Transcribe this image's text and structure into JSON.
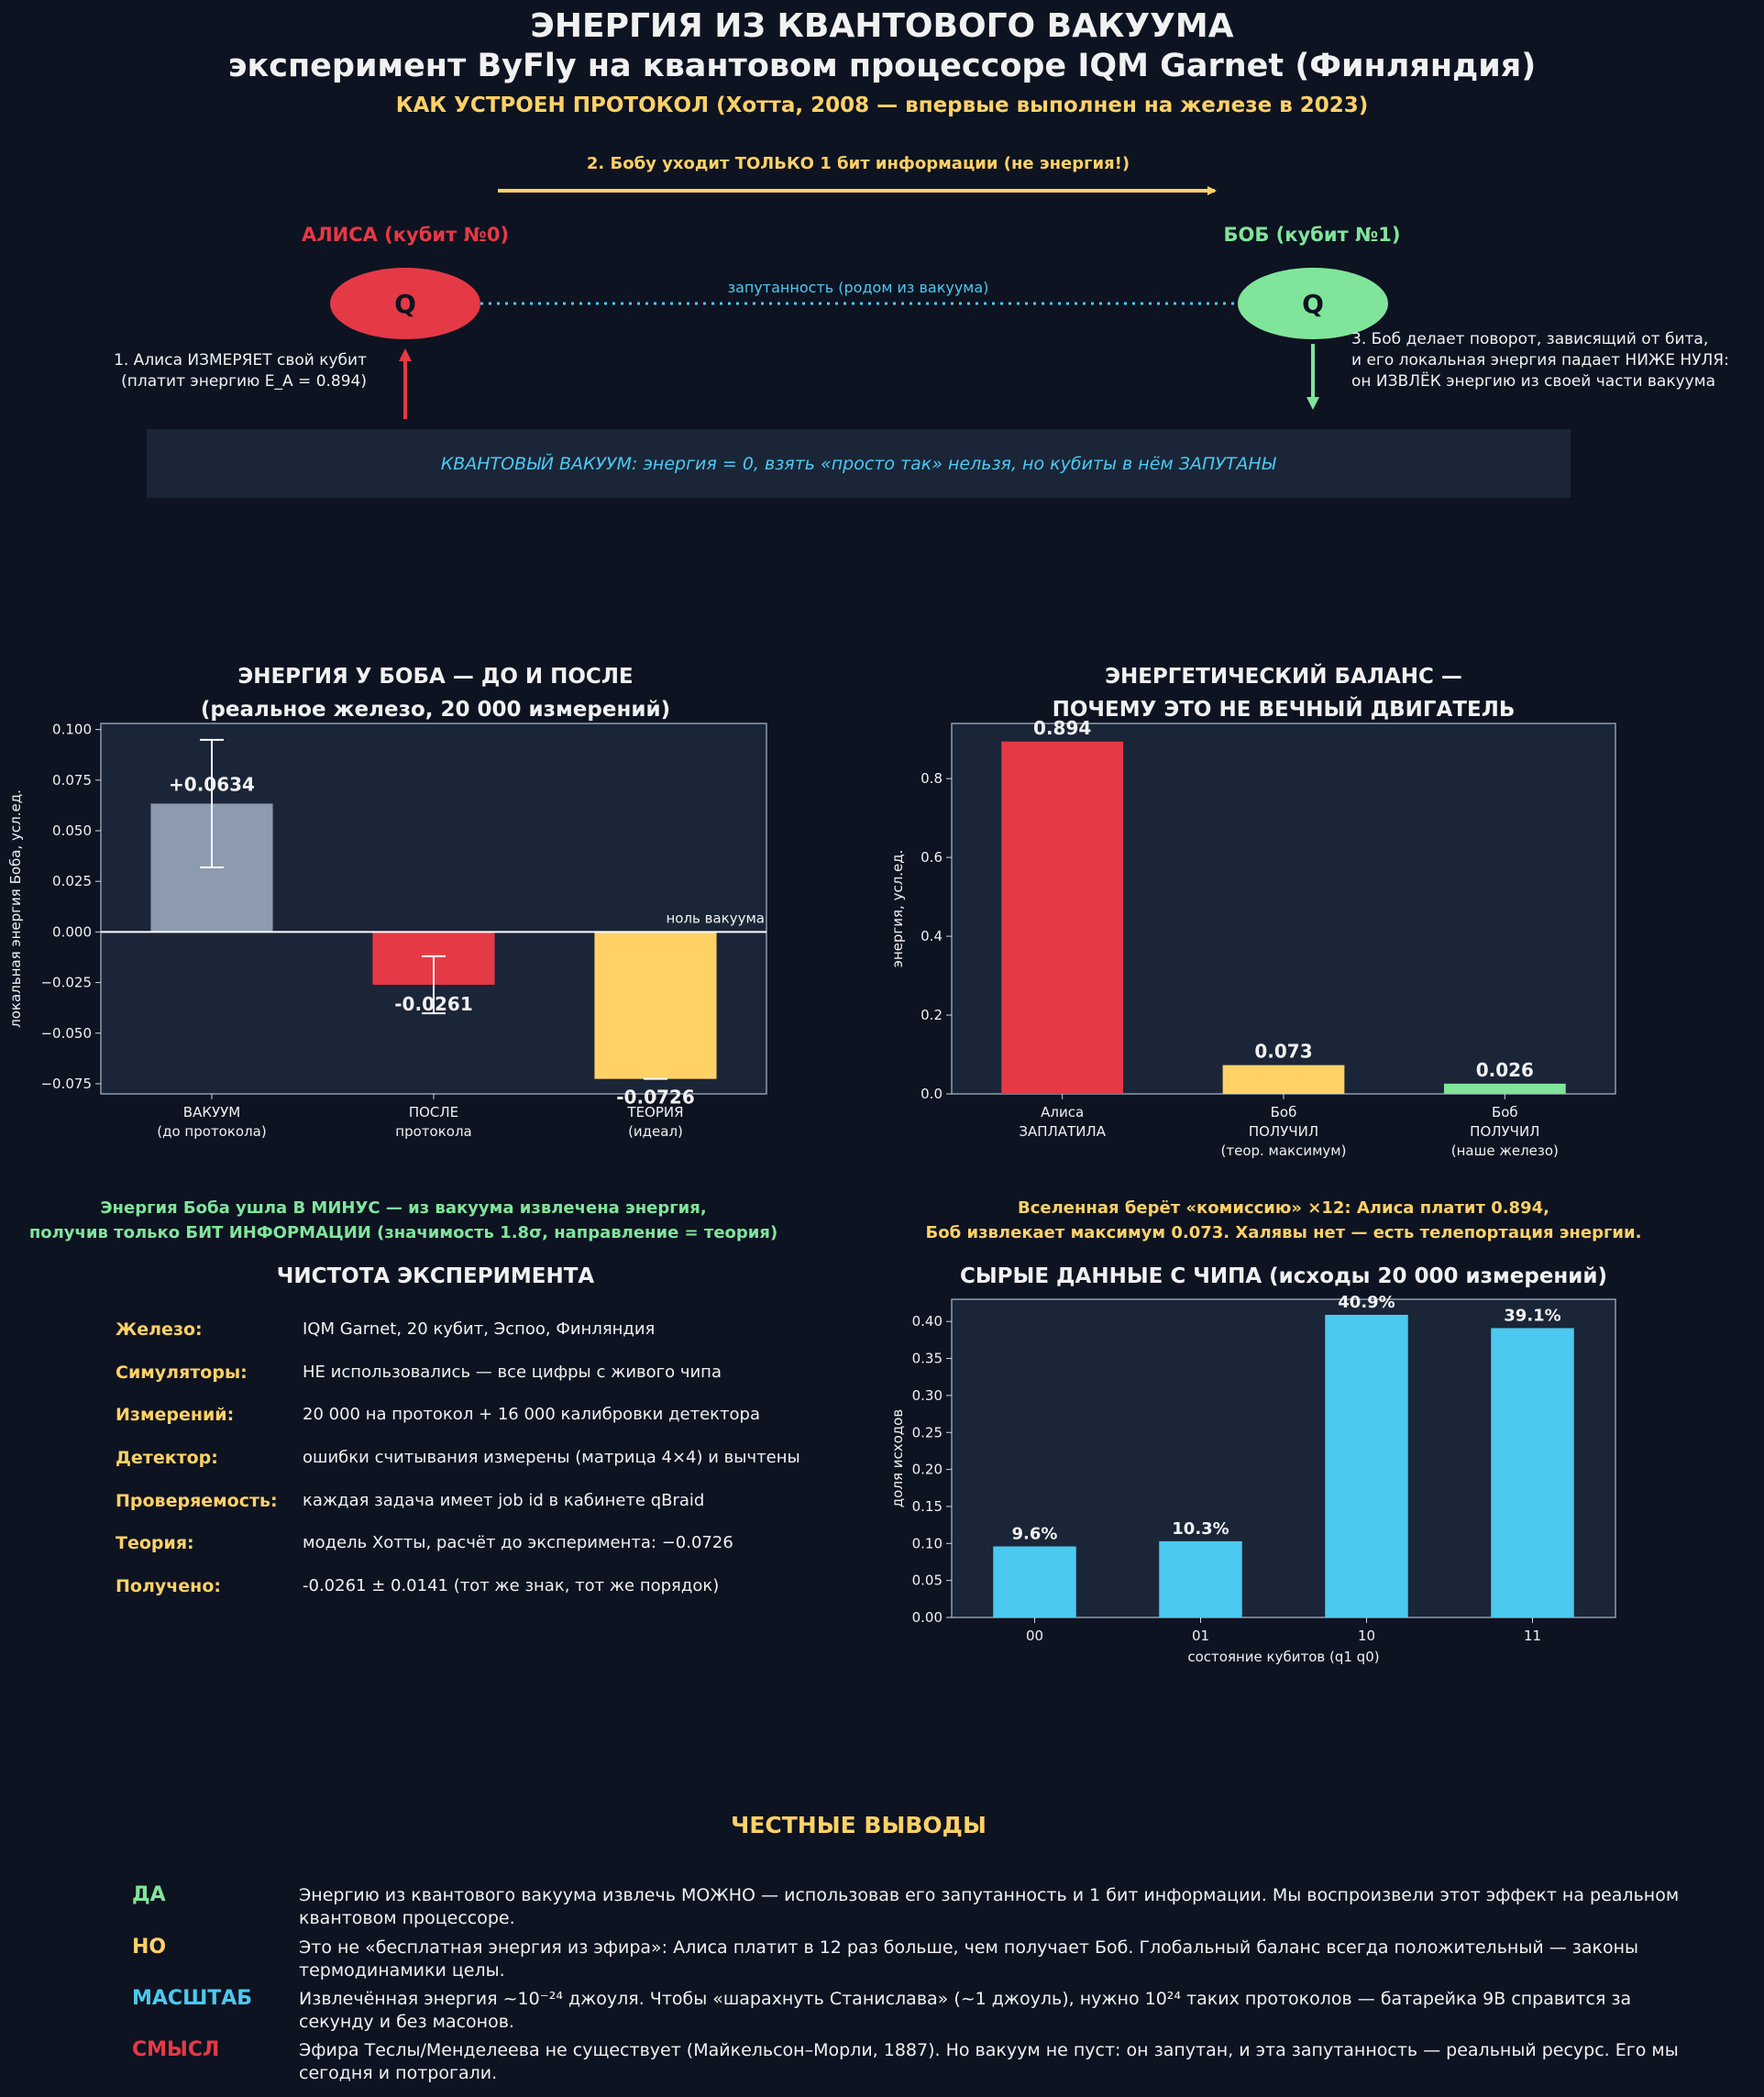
{
  "header": {
    "title1": "ЭНЕРГИЯ ИЗ КВАНТОВОГО ВАКУУМА",
    "title2": "эксперимент ByFly на квантовом процессоре IQM Garnet (Финляндия)",
    "subtitle": "КАК УСТРОЕН ПРОТОКОЛ (Хотта, 2008 — впервые выполнен на железе в 2023)"
  },
  "diagram": {
    "step2": "2. Бобу уходит ТОЛЬКО 1 бит информации (не энергия!)",
    "alice_label": "АЛИСА (кубит №0)",
    "bob_label": "БОБ (кубит №1)",
    "alice_q": "Q",
    "bob_q": "Q",
    "entangle": "запутанность (родом из вакуума)",
    "step1_line1": "1. Алиса ИЗМЕРЯЕТ свой кубит",
    "step1_line2": "(платит энергию E_A = 0.894)",
    "step3_line1": "3. Боб делает поворот, зависящий от бита,",
    "step3_line2": "и его локальная энергия падает НИЖЕ НУЛЯ:",
    "step3_line3": "он ИЗВЛЁК энергию из своей части вакуума",
    "vacuum_box": "КВАНТОВЫЙ ВАКУУМ: энергия = 0, взять «просто так» нельзя, но кубиты в нём ЗАПУТАНЫ",
    "colors": {
      "alice": "#e63946",
      "bob": "#80e59b",
      "info": "#ffd166",
      "entangle": "#4cc9f0"
    }
  },
  "panel1": {
    "title_line1": "ЭНЕРГИЯ У БОБА — ДО И ПОСЛЕ",
    "title_line2": "(реальное железо, 20 000 измерений)",
    "zero_label": "ноль вакуума",
    "note_line1": "Энергия Боба ушла В МИНУС — из вакуума извлечена энергия,",
    "note_line2": "получив только БИТ ИНФОРМАЦИИ (значимость 1.8σ, направление = теория)"
  },
  "panel2": {
    "title_line1": "ЭНЕРГЕТИЧЕСКИЙ БАЛАНС —",
    "title_line2": "ПОЧЕМУ ЭТО НЕ ВЕЧНЫЙ ДВИГАТЕЛЬ",
    "note_line1": "Вселенная берёт «комиссию» ×12: Алиса платит 0.894,",
    "note_line2": "Боб извлекает максимум 0.073. Халявы нет — есть телепортация энергии."
  },
  "purity": {
    "title": "ЧИСТОТА ЭКСПЕРИМЕНТА",
    "rows": [
      {
        "key": "Железо:",
        "value": "IQM Garnet, 20 кубит, Эспоо, Финляндия"
      },
      {
        "key": "Симуляторы:",
        "value": "НЕ использовались — все цифры с живого чипа"
      },
      {
        "key": "Измерений:",
        "value": "20 000 на протокол + 16 000 калибровки детектора"
      },
      {
        "key": "Детектор:",
        "value": "ошибки считывания измерены (матрица 4×4) и вычтены"
      },
      {
        "key": "Проверяемость:",
        "value": "каждая задача имеет job id в кабинете qBraid"
      },
      {
        "key": "Теория:",
        "value": "модель Хотты, расчёт до эксперимента: −0.0726"
      },
      {
        "key": "Получено:",
        "value": "-0.0261 ± 0.0141 (тот же знак, тот же порядок)"
      }
    ]
  },
  "panel4": {
    "title": "СЫРЫЕ ДАННЫЕ С ЧИПА (исходы 20 000 измерений)"
  },
  "conclusions": {
    "title": "ЧЕСТНЫЕ ВЫВОДЫ",
    "items": [
      {
        "key": "ДА",
        "color": "#80e59b",
        "line1": "Энергию из квантового вакуума извлечь МОЖНО — использовав его запутанность и 1 бит информации. Мы воспроизвели этот эффект на реальном",
        "line2": "квантовом процессоре."
      },
      {
        "key": "НО",
        "color": "#ffd166",
        "line1": "Это не «бесплатная энергия из эфира»: Алиса платит в 12 раз больше, чем получает Боб. Глобальный баланс всегда положительный — законы",
        "line2": "термодинамики целы."
      },
      {
        "key": "МАСШТАБ",
        "color": "#4cc9f0",
        "line1": "Извлечённая энергия ~10⁻²⁴ джоуля. Чтобы «шарахнуть Станислава» (~1 джоуль), нужно 10²⁴ таких протоколов — батарейка 9В справится за",
        "line2": "секунду и без масонов."
      },
      {
        "key": "СМЫСЛ",
        "color": "#e63946",
        "line1": "Эфира Теслы/Менделеева не существует (Майкельсон–Морли, 1887). Но вакуум не пуст: он запутан, и эта запутанность — реальный ресурс. Его мы",
        "line2": "сегодня и потрогали."
      }
    ]
  },
  "chart_data": [
    {
      "type": "bar",
      "categories": [
        [
          "ВАКУУМ",
          "(до протокола)"
        ],
        [
          "ПОСЛЕ",
          "протокола"
        ],
        [
          "ТЕОРИЯ",
          "(идеал)"
        ]
      ],
      "values": [
        0.0634,
        -0.0261,
        -0.0726
      ],
      "errors": [
        0.0315,
        0.0141,
        0
      ],
      "value_labels": [
        "+0.0634",
        "-0.0261",
        "-0.0726"
      ],
      "colors": [
        "#8d9bb0",
        "#e63946",
        "#ffd166"
      ],
      "ylabel": "локальная энергия Боба, усл.ед.",
      "ylim": [
        -0.08,
        0.103
      ],
      "yticks": [
        -0.075,
        -0.05,
        -0.025,
        0.0,
        0.025,
        0.05,
        0.075,
        0.1
      ],
      "ytick_labels": [
        "−0.075",
        "−0.050",
        "−0.025",
        "0.000",
        "0.025",
        "0.050",
        "0.075",
        "0.100"
      ]
    },
    {
      "type": "bar",
      "categories": [
        [
          "Алиса",
          "ЗАПЛАТИЛА"
        ],
        [
          "Боб",
          "ПОЛУЧИЛ",
          "(теор. максимум)"
        ],
        [
          "Боб",
          "ПОЛУЧИЛ",
          "(наше железо)"
        ]
      ],
      "values": [
        0.894,
        0.073,
        0.026
      ],
      "value_labels": [
        "0.894",
        "0.073",
        "0.026"
      ],
      "colors": [
        "#e63946",
        "#ffd166",
        "#80e59b"
      ],
      "ylabel": "энергия, усл.ед.",
      "ylim": [
        0,
        0.94
      ],
      "yticks": [
        0.0,
        0.2,
        0.4,
        0.6,
        0.8
      ],
      "ytick_labels": [
        "0.0",
        "0.2",
        "0.4",
        "0.6",
        "0.8"
      ]
    },
    {
      "type": "bar",
      "categories": [
        [
          "00"
        ],
        [
          "01"
        ],
        [
          "10"
        ],
        [
          "11"
        ]
      ],
      "values": [
        0.096,
        0.103,
        0.409,
        0.391
      ],
      "value_labels": [
        "9.6%",
        "10.3%",
        "40.9%",
        "39.1%"
      ],
      "colors": [
        "#4cc9f0",
        "#4cc9f0",
        "#4cc9f0",
        "#4cc9f0"
      ],
      "xlabel": "состояние кубитов (q1 q0)",
      "ylabel": "доля исходов",
      "ylim": [
        0,
        0.43
      ],
      "yticks": [
        0.0,
        0.05,
        0.1,
        0.15,
        0.2,
        0.25,
        0.3,
        0.35,
        0.4
      ],
      "ytick_labels": [
        "0.00",
        "0.05",
        "0.10",
        "0.15",
        "0.20",
        "0.25",
        "0.30",
        "0.35",
        "0.40"
      ]
    }
  ]
}
